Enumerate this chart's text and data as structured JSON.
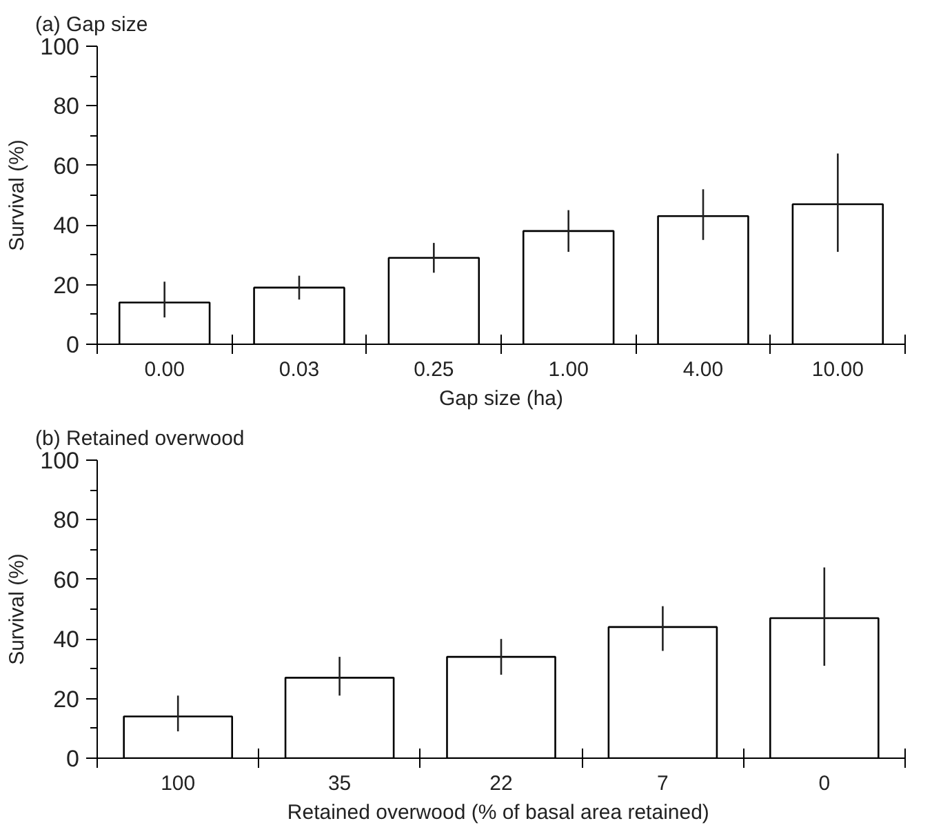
{
  "chart_data": [
    {
      "type": "bar",
      "title": "(a) Gap size",
      "xlabel": "Gap size (ha)",
      "ylabel": "Survival (%)",
      "categories": [
        "0.00",
        "0.03",
        "0.25",
        "1.00",
        "4.00",
        "10.00"
      ],
      "values": [
        14,
        19,
        29,
        38,
        43,
        47
      ],
      "errors": [
        [
          9,
          21
        ],
        [
          15,
          23
        ],
        [
          24,
          34
        ],
        [
          31,
          45
        ],
        [
          35,
          52
        ],
        [
          31,
          64
        ]
      ],
      "color": "#ffffff",
      "ylim": [
        0,
        100
      ],
      "yticks": [
        0,
        20,
        40,
        60,
        80,
        100
      ],
      "grid": false
    },
    {
      "type": "bar",
      "title": "(b) Retained overwood",
      "xlabel": "Retained overwood  (% of basal area retained)",
      "ylabel": "Survival (%)",
      "categories": [
        "100",
        "35",
        "22",
        "7",
        "0"
      ],
      "values": [
        14,
        27,
        34,
        44,
        47
      ],
      "errors": [
        [
          9,
          21
        ],
        [
          21,
          34
        ],
        [
          28,
          40
        ],
        [
          36,
          51
        ],
        [
          31,
          64
        ]
      ],
      "color": "#ffffff",
      "ylim": [
        0,
        100
      ],
      "yticks": [
        0,
        20,
        40,
        60,
        80,
        100
      ],
      "grid": false
    }
  ]
}
